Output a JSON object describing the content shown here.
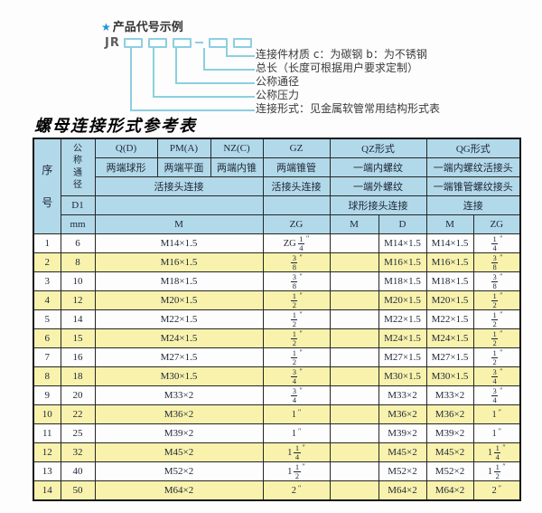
{
  "diagram": {
    "star_icon": "★",
    "title": "产品代号示例",
    "prefix": "JR",
    "labels": [
      "连接件材质  c：为碳钢  b：为不锈钢",
      "总长（长度可根据用户要求定制）",
      "公称通径",
      "公称压力",
      "连接形式：见金属软管常用结构形式表"
    ]
  },
  "table_title": "螺母连接形式参考表",
  "table": {
    "serial_header": "序号",
    "diameter_header": "公称通径",
    "d1_label": "D1",
    "unit_label": "mm",
    "type_headers": [
      "Q(D)",
      "PM(A)",
      "NZ(C)",
      "GZ",
      "QZ形式",
      "QG形式"
    ],
    "end_type_row": [
      "两端球形",
      "两端平面",
      "两端内锥",
      "两端锥管",
      "一端内螺纹",
      "一端内螺纹活接头"
    ],
    "connect_row": [
      "活接头连接",
      "活接头连接",
      "一端外螺纹",
      "一端锥管螺纹接头"
    ],
    "connect_row2": [
      "球形接头连接",
      "连接"
    ],
    "thread_row": [
      "M",
      "ZG",
      "M",
      "D",
      "M",
      "ZG"
    ],
    "rows": [
      {
        "no": "1",
        "dn": "6",
        "m": "M14×1.5",
        "gz": "ZG 1/4\"",
        "qz_m": "",
        "qz_d": "M14×1.5",
        "qg_m": "M14×1.5",
        "qg_zg": "1/4\""
      },
      {
        "no": "2",
        "dn": "8",
        "m": "M16×1.5",
        "gz": "3/8\"",
        "qz_m": "",
        "qz_d": "M16×1.5",
        "qg_m": "M16×1.5",
        "qg_zg": "3/8\""
      },
      {
        "no": "3",
        "dn": "10",
        "m": "M18×1.5",
        "gz": "3/8\"",
        "qz_m": "",
        "qz_d": "M18×1.5",
        "qg_m": "M18×1.5",
        "qg_zg": "3/8\""
      },
      {
        "no": "4",
        "dn": "12",
        "m": "M20×1.5",
        "gz": "1/2\"",
        "qz_m": "",
        "qz_d": "M20×1.5",
        "qg_m": "M20×1.5",
        "qg_zg": "1/2\""
      },
      {
        "no": "5",
        "dn": "14",
        "m": "M22×1.5",
        "gz": "1/2\"",
        "qz_m": "",
        "qz_d": "M22×1.5",
        "qg_m": "M22×1.5",
        "qg_zg": "1/2\""
      },
      {
        "no": "6",
        "dn": "15",
        "m": "M24×1.5",
        "gz": "1/2\"",
        "qz_m": "",
        "qz_d": "M24×1.5",
        "qg_m": "M24×1.5",
        "qg_zg": "1/2\""
      },
      {
        "no": "7",
        "dn": "16",
        "m": "M27×1.5",
        "gz": "1/2\"",
        "qz_m": "",
        "qz_d": "M27×1.5",
        "qg_m": "M27×1.5",
        "qg_zg": "1/2\""
      },
      {
        "no": "8",
        "dn": "18",
        "m": "M30×1.5",
        "gz": "3/4\"",
        "qz_m": "",
        "qz_d": "M30×1.5",
        "qg_m": "M30×1.5",
        "qg_zg": "3/4\""
      },
      {
        "no": "9",
        "dn": "20",
        "m": "M33×2",
        "gz": "3/4\"",
        "qz_m": "",
        "qz_d": "M33×2",
        "qg_m": "M33×2",
        "qg_zg": "3/4\""
      },
      {
        "no": "10",
        "dn": "22",
        "m": "M36×2",
        "gz": "1\"",
        "qz_m": "",
        "qz_d": "M36×2",
        "qg_m": "M36×2",
        "qg_zg": "1\""
      },
      {
        "no": "11",
        "dn": "25",
        "m": "M39×2",
        "gz": "1\"",
        "qz_m": "",
        "qz_d": "M39×2",
        "qg_m": "M39×2",
        "qg_zg": "1\""
      },
      {
        "no": "12",
        "dn": "32",
        "m": "M45×2",
        "gz": "1 1/4\"",
        "qz_m": "",
        "qz_d": "M45×2",
        "qg_m": "M45×2",
        "qg_zg": "1 1/4\""
      },
      {
        "no": "13",
        "dn": "40",
        "m": "M52×2",
        "gz": "1 1/2\"",
        "qz_m": "",
        "qz_d": "M52×2",
        "qg_m": "M52×2",
        "qg_zg": "1 1/2\""
      },
      {
        "no": "14",
        "dn": "50",
        "m": "M64×2",
        "gz": "2\"",
        "qz_m": "",
        "qz_d": "M64×2",
        "qg_m": "M64×2",
        "qg_zg": "2\""
      }
    ]
  },
  "colors": {
    "header_bg": "#b2d9e9",
    "stripe_bg": "#f8f2ad",
    "line_blue": "#8ccfe0",
    "star_blue": "#1e96d2"
  }
}
